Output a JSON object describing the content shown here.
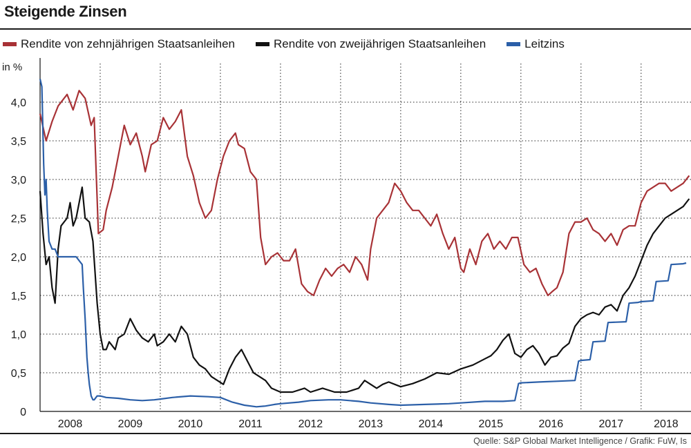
{
  "title": "Steigende Zinsen",
  "source": "Quelle: S&P Global Market Intelligence / Grafik: FuW, Is",
  "colors": {
    "ten_year": "#a83236",
    "two_year": "#111111",
    "policy": "#2b5fa8",
    "grid": "#222222"
  },
  "chart_data": {
    "type": "line",
    "title": "Steigende Zinsen",
    "xlabel": "",
    "ylabel": "in %",
    "ylim": [
      0,
      4.5
    ],
    "yticks": [
      0,
      0.5,
      1.0,
      1.5,
      2.0,
      2.5,
      3.0,
      3.5,
      4.0
    ],
    "ytick_labels": [
      "0",
      "0,5",
      "1,0",
      "1,5",
      "2,0",
      "2,5",
      "3,0",
      "3,5",
      "4,0"
    ],
    "xlim": [
      2008.0,
      2018.83
    ],
    "xtick_labels": [
      "2008",
      "2009",
      "2010",
      "2011",
      "2012",
      "2013",
      "2014",
      "2015",
      "2016",
      "2017",
      "2018"
    ],
    "year_starts": [
      2008,
      2009,
      2010,
      2011,
      2012,
      2013,
      2014,
      2015,
      2016,
      2017,
      2018
    ],
    "grid": true,
    "legend_position": "top",
    "series": [
      {
        "name": "Rendite von zehnjährigen Staatsanleihen",
        "color_key": "ten_year",
        "x": [
          2008.0,
          2008.1,
          2008.2,
          2008.3,
          2008.45,
          2008.55,
          2008.65,
          2008.75,
          2008.85,
          2008.9,
          2008.97,
          2009.05,
          2009.1,
          2009.2,
          2009.3,
          2009.4,
          2009.5,
          2009.6,
          2009.7,
          2009.75,
          2009.85,
          2009.95,
          2010.05,
          2010.15,
          2010.25,
          2010.35,
          2010.45,
          2010.55,
          2010.65,
          2010.75,
          2010.85,
          2010.95,
          2011.05,
          2011.15,
          2011.25,
          2011.3,
          2011.4,
          2011.5,
          2011.6,
          2011.67,
          2011.75,
          2011.85,
          2011.95,
          2012.05,
          2012.15,
          2012.25,
          2012.35,
          2012.45,
          2012.55,
          2012.65,
          2012.75,
          2012.85,
          2012.95,
          2013.05,
          2013.15,
          2013.25,
          2013.35,
          2013.45,
          2013.5,
          2013.6,
          2013.7,
          2013.8,
          2013.9,
          2014.0,
          2014.1,
          2014.2,
          2014.3,
          2014.4,
          2014.5,
          2014.6,
          2014.7,
          2014.8,
          2014.9,
          2015.0,
          2015.05,
          2015.15,
          2015.25,
          2015.35,
          2015.45,
          2015.55,
          2015.65,
          2015.75,
          2015.85,
          2015.95,
          2016.05,
          2016.15,
          2016.25,
          2016.35,
          2016.45,
          2016.52,
          2016.6,
          2016.7,
          2016.8,
          2016.9,
          2017.0,
          2017.1,
          2017.2,
          2017.3,
          2017.4,
          2017.5,
          2017.6,
          2017.7,
          2017.8,
          2017.9,
          2018.0,
          2018.1,
          2018.2,
          2018.3,
          2018.4,
          2018.5,
          2018.6,
          2018.7,
          2018.8
        ],
        "values": [
          3.85,
          3.5,
          3.75,
          3.95,
          4.1,
          3.9,
          4.15,
          4.05,
          3.7,
          3.8,
          2.3,
          2.35,
          2.6,
          2.9,
          3.3,
          3.7,
          3.45,
          3.6,
          3.3,
          3.1,
          3.45,
          3.5,
          3.8,
          3.65,
          3.75,
          3.9,
          3.3,
          3.05,
          2.7,
          2.5,
          2.6,
          3.0,
          3.3,
          3.5,
          3.6,
          3.45,
          3.4,
          3.1,
          3.0,
          2.25,
          1.9,
          2.0,
          2.05,
          1.95,
          1.95,
          2.1,
          1.65,
          1.55,
          1.5,
          1.7,
          1.85,
          1.75,
          1.85,
          1.9,
          1.8,
          2.0,
          1.9,
          1.7,
          2.1,
          2.5,
          2.6,
          2.7,
          2.95,
          2.85,
          2.7,
          2.6,
          2.6,
          2.5,
          2.4,
          2.55,
          2.3,
          2.1,
          2.25,
          1.85,
          1.8,
          2.1,
          1.9,
          2.2,
          2.3,
          2.1,
          2.2,
          2.1,
          2.25,
          2.25,
          1.9,
          1.8,
          1.85,
          1.65,
          1.5,
          1.55,
          1.6,
          1.8,
          2.3,
          2.45,
          2.45,
          2.5,
          2.35,
          2.3,
          2.2,
          2.3,
          2.15,
          2.35,
          2.4,
          2.4,
          2.7,
          2.85,
          2.9,
          2.95,
          2.95,
          2.85,
          2.9,
          2.95,
          3.05
        ]
      },
      {
        "name": "Rendite von zweijährigen Staatsanleihen",
        "color_key": "two_year",
        "x": [
          2008.0,
          2008.05,
          2008.1,
          2008.15,
          2008.2,
          2008.25,
          2008.3,
          2008.35,
          2008.45,
          2008.5,
          2008.55,
          2008.6,
          2008.7,
          2008.75,
          2008.82,
          2008.88,
          2008.95,
          2009.0,
          2009.05,
          2009.1,
          2009.15,
          2009.2,
          2009.25,
          2009.3,
          2009.4,
          2009.5,
          2009.6,
          2009.7,
          2009.8,
          2009.9,
          2009.95,
          2010.05,
          2010.15,
          2010.25,
          2010.35,
          2010.45,
          2010.55,
          2010.65,
          2010.75,
          2010.85,
          2010.95,
          2011.05,
          2011.15,
          2011.25,
          2011.35,
          2011.45,
          2011.55,
          2011.65,
          2011.75,
          2011.85,
          2012.0,
          2012.2,
          2012.4,
          2012.5,
          2012.7,
          2012.9,
          2013.1,
          2013.3,
          2013.4,
          2013.5,
          2013.6,
          2013.7,
          2013.8,
          2014.0,
          2014.2,
          2014.4,
          2014.6,
          2014.8,
          2015.0,
          2015.2,
          2015.4,
          2015.5,
          2015.6,
          2015.7,
          2015.8,
          2015.9,
          2016.0,
          2016.1,
          2016.2,
          2016.3,
          2016.4,
          2016.5,
          2016.6,
          2016.7,
          2016.8,
          2016.9,
          2017.0,
          2017.1,
          2017.2,
          2017.3,
          2017.4,
          2017.5,
          2017.6,
          2017.7,
          2017.8,
          2017.9,
          2018.0,
          2018.1,
          2018.2,
          2018.3,
          2018.4,
          2018.5,
          2018.6,
          2018.7,
          2018.8
        ],
        "values": [
          2.85,
          2.3,
          1.9,
          2.0,
          1.6,
          1.4,
          2.1,
          2.4,
          2.5,
          2.7,
          2.4,
          2.5,
          2.9,
          2.5,
          2.45,
          2.2,
          1.4,
          1.0,
          0.8,
          0.8,
          0.9,
          0.85,
          0.8,
          0.95,
          1.0,
          1.2,
          1.05,
          0.95,
          0.9,
          1.0,
          0.85,
          0.9,
          1.0,
          0.9,
          1.1,
          1.0,
          0.7,
          0.6,
          0.55,
          0.45,
          0.4,
          0.35,
          0.55,
          0.7,
          0.8,
          0.65,
          0.5,
          0.45,
          0.4,
          0.3,
          0.25,
          0.25,
          0.3,
          0.25,
          0.3,
          0.25,
          0.25,
          0.3,
          0.4,
          0.35,
          0.3,
          0.35,
          0.38,
          0.32,
          0.36,
          0.42,
          0.5,
          0.48,
          0.55,
          0.6,
          0.68,
          0.72,
          0.8,
          0.92,
          1.0,
          0.75,
          0.7,
          0.8,
          0.85,
          0.75,
          0.6,
          0.7,
          0.72,
          0.82,
          0.88,
          1.1,
          1.2,
          1.25,
          1.28,
          1.25,
          1.35,
          1.38,
          1.3,
          1.5,
          1.6,
          1.75,
          1.95,
          2.15,
          2.3,
          2.4,
          2.5,
          2.55,
          2.6,
          2.65,
          2.75
        ]
      },
      {
        "name": "Leitzins",
        "color_key": "policy",
        "x": [
          2008.0,
          2008.03,
          2008.06,
          2008.08,
          2008.1,
          2008.12,
          2008.15,
          2008.2,
          2008.25,
          2008.3,
          2008.4,
          2008.5,
          2008.6,
          2008.7,
          2008.72,
          2008.75,
          2008.78,
          2008.8,
          2008.82,
          2008.85,
          2008.88,
          2008.9,
          2008.95,
          2009.0,
          2009.1,
          2009.3,
          2009.5,
          2009.7,
          2009.9,
          2010.0,
          2010.2,
          2010.5,
          2010.8,
          2011.0,
          2011.2,
          2011.4,
          2011.6,
          2011.75,
          2011.9,
          2012.0,
          2012.3,
          2012.5,
          2012.8,
          2013.0,
          2013.3,
          2013.5,
          2013.8,
          2014.0,
          2014.4,
          2014.8,
          2015.0,
          2015.4,
          2015.7,
          2015.9,
          2015.96,
          2016.0,
          2016.3,
          2016.6,
          2016.9,
          2016.96,
          2017.0,
          2017.15,
          2017.2,
          2017.4,
          2017.45,
          2017.75,
          2017.8,
          2017.95,
          2018.0,
          2018.2,
          2018.25,
          2018.45,
          2018.5,
          2018.7,
          2018.75
        ],
        "values": [
          4.3,
          4.2,
          3.2,
          2.8,
          3.0,
          2.6,
          2.2,
          2.1,
          2.1,
          2.0,
          2.0,
          2.0,
          2.0,
          1.9,
          1.6,
          1.2,
          0.7,
          0.5,
          0.35,
          0.2,
          0.15,
          0.15,
          0.2,
          0.2,
          0.18,
          0.17,
          0.15,
          0.14,
          0.15,
          0.16,
          0.18,
          0.2,
          0.19,
          0.18,
          0.12,
          0.08,
          0.06,
          0.07,
          0.09,
          0.1,
          0.12,
          0.14,
          0.15,
          0.15,
          0.13,
          0.11,
          0.09,
          0.08,
          0.09,
          0.1,
          0.11,
          0.13,
          0.13,
          0.14,
          0.36,
          0.37,
          0.38,
          0.39,
          0.4,
          0.65,
          0.66,
          0.67,
          0.9,
          0.91,
          1.15,
          1.16,
          1.4,
          1.41,
          1.42,
          1.43,
          1.68,
          1.69,
          1.9,
          1.91,
          1.92
        ]
      }
    ]
  }
}
